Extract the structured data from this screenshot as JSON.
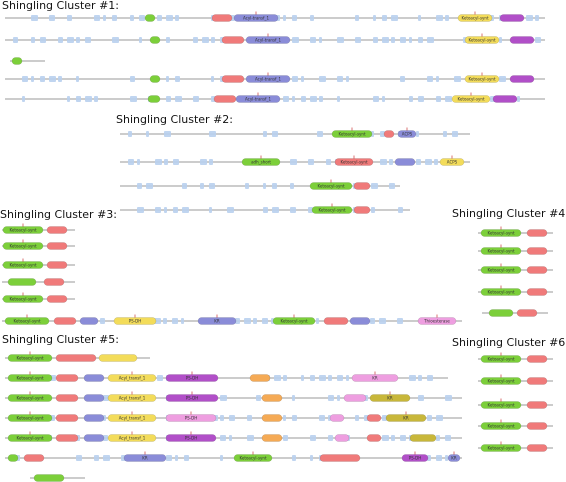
{
  "colors": {
    "green": "#7ccf3a",
    "red": "#f07a7a",
    "blue": "#8a8cd8",
    "purple": "#b14fc8",
    "yellow": "#f3dc5a",
    "orange": "#f5aa55",
    "pink": "#ee9ee0",
    "olive": "#c8b73a",
    "lightblue": "#b9d0ee",
    "line": "#9a9a9a"
  },
  "clusters": [
    {
      "title": "Shingling Cluster #1:",
      "rows": [
        {
          "blocks": [
            {
              "type": "green",
              "label": ""
            },
            {
              "type": "red",
              "label": ""
            },
            {
              "type": "blue",
              "label": "Acyl-transf_1"
            },
            {
              "type": "yellow",
              "label": "Ketoacyl-synt"
            },
            {
              "type": "purple",
              "label": ""
            }
          ]
        },
        {
          "blocks": [
            {
              "type": "green",
              "label": ""
            },
            {
              "type": "red",
              "label": ""
            },
            {
              "type": "blue",
              "label": "Acyl-transf_1"
            },
            {
              "type": "yellow",
              "label": "Ketoacyl-synt"
            },
            {
              "type": "purple",
              "label": ""
            }
          ]
        },
        {
          "blocks": [
            {
              "type": "green",
              "label": ""
            }
          ]
        },
        {
          "blocks": [
            {
              "type": "green",
              "label": ""
            },
            {
              "type": "red",
              "label": ""
            },
            {
              "type": "blue",
              "label": "Acyl-transf_1"
            },
            {
              "type": "yellow",
              "label": "Ketoacyl-synt"
            },
            {
              "type": "purple",
              "label": ""
            }
          ]
        },
        {
          "blocks": [
            {
              "type": "green",
              "label": ""
            },
            {
              "type": "red",
              "label": ""
            },
            {
              "type": "blue",
              "label": "Acyl-transf_1"
            },
            {
              "type": "yellow",
              "label": "Ketoacyl-synt"
            },
            {
              "type": "purple",
              "label": ""
            }
          ]
        }
      ]
    },
    {
      "title": "Shingling Cluster #2:",
      "rows": [
        {
          "blocks": [
            {
              "type": "green",
              "label": "Ketoacyl-synt"
            },
            {
              "type": "red",
              "label": ""
            },
            {
              "type": "blue",
              "label": "ACPS"
            }
          ]
        },
        {
          "blocks": [
            {
              "type": "green",
              "label": "adh_short"
            },
            {
              "type": "red",
              "label": "Ketoacyl-synt"
            },
            {
              "type": "blue",
              "label": ""
            },
            {
              "type": "yellow",
              "label": "ACPS"
            }
          ]
        },
        {
          "blocks": [
            {
              "type": "green",
              "label": "Ketoacyl-synt"
            },
            {
              "type": "red",
              "label": ""
            }
          ]
        },
        {
          "blocks": [
            {
              "type": "green",
              "label": "Ketoacyl-synt"
            },
            {
              "type": "red",
              "label": ""
            }
          ]
        }
      ]
    },
    {
      "title": "Shingling Cluster #3:",
      "rows": [
        {
          "blocks": [
            {
              "type": "green",
              "label": "Ketoacyl-synt"
            },
            {
              "type": "red",
              "label": ""
            }
          ]
        },
        {
          "blocks": [
            {
              "type": "green",
              "label": "Ketoacyl-synt"
            },
            {
              "type": "red",
              "label": ""
            }
          ]
        },
        {
          "blocks": [
            {
              "type": "green",
              "label": "Ketoacyl-synt"
            },
            {
              "type": "red",
              "label": ""
            }
          ]
        },
        {
          "blocks": [
            {
              "type": "green",
              "label": ""
            },
            {
              "type": "red",
              "label": ""
            }
          ]
        },
        {
          "blocks": [
            {
              "type": "green",
              "label": "Ketoacyl-synt"
            },
            {
              "type": "red",
              "label": ""
            }
          ]
        },
        {
          "blocks": [
            {
              "type": "green",
              "label": "Ketoacyl-synt"
            },
            {
              "type": "red",
              "label": ""
            },
            {
              "type": "blue",
              "label": ""
            },
            {
              "type": "yellow",
              "label": "PS-DH"
            },
            {
              "type": "blue",
              "label": "KR"
            },
            {
              "type": "green",
              "label": "Ketoacyl-synt"
            },
            {
              "type": "red",
              "label": ""
            },
            {
              "type": "blue",
              "label": ""
            },
            {
              "type": "pink",
              "label": "Thioesterase"
            }
          ]
        }
      ]
    },
    {
      "title": "Shingling Cluster #4:",
      "rows": [
        {
          "blocks": [
            {
              "type": "green",
              "label": "Ketoacyl-synt"
            },
            {
              "type": "red",
              "label": ""
            }
          ]
        },
        {
          "blocks": [
            {
              "type": "green",
              "label": "Ketoacyl-synt"
            },
            {
              "type": "red",
              "label": ""
            }
          ]
        },
        {
          "blocks": [
            {
              "type": "green",
              "label": "Ketoacyl-synt"
            },
            {
              "type": "red",
              "label": ""
            }
          ]
        },
        {
          "blocks": [
            {
              "type": "green",
              "label": "Ketoacyl-synt"
            },
            {
              "type": "red",
              "label": ""
            }
          ]
        },
        {
          "blocks": [
            {
              "type": "green",
              "label": ""
            },
            {
              "type": "red",
              "label": ""
            }
          ]
        }
      ]
    },
    {
      "title": "Shingling Cluster #5:",
      "rows": [
        {
          "blocks": [
            {
              "type": "green",
              "label": "Ketoacyl-synt"
            },
            {
              "type": "red",
              "label": ""
            },
            {
              "type": "yellow",
              "label": ""
            }
          ]
        },
        {
          "blocks": [
            {
              "type": "green",
              "label": "Ketoacyl-synt"
            },
            {
              "type": "red",
              "label": ""
            },
            {
              "type": "blue",
              "label": ""
            },
            {
              "type": "yellow",
              "label": "Acyl_transf_1"
            },
            {
              "type": "purple",
              "label": "PS-DH"
            },
            {
              "type": "orange",
              "label": ""
            },
            {
              "type": "pink",
              "label": "KR"
            }
          ]
        },
        {
          "blocks": [
            {
              "type": "green",
              "label": "Ketoacyl-synt"
            },
            {
              "type": "red",
              "label": ""
            },
            {
              "type": "blue",
              "label": ""
            },
            {
              "type": "yellow",
              "label": "Acyl_transf_1"
            },
            {
              "type": "purple",
              "label": "PS-DH"
            },
            {
              "type": "orange",
              "label": ""
            },
            {
              "type": "pink",
              "label": ""
            },
            {
              "type": "olive",
              "label": "KR"
            }
          ]
        },
        {
          "blocks": [
            {
              "type": "green",
              "label": "Ketoacyl-synt"
            },
            {
              "type": "red",
              "label": ""
            },
            {
              "type": "blue",
              "label": ""
            },
            {
              "type": "yellow",
              "label": "Acyl_transf_1"
            },
            {
              "type": "pink",
              "label": "PS-DH"
            },
            {
              "type": "orange",
              "label": ""
            },
            {
              "type": "pink",
              "label": ""
            },
            {
              "type": "red",
              "label": ""
            },
            {
              "type": "olive",
              "label": "KR"
            }
          ]
        },
        {
          "blocks": [
            {
              "type": "green",
              "label": "Ketoacyl-synt"
            },
            {
              "type": "red",
              "label": ""
            },
            {
              "type": "blue",
              "label": ""
            },
            {
              "type": "yellow",
              "label": "Acyl_transf_1"
            },
            {
              "type": "purple",
              "label": "PS-DH"
            },
            {
              "type": "orange",
              "label": ""
            },
            {
              "type": "pink",
              "label": ""
            },
            {
              "type": "red",
              "label": ""
            },
            {
              "type": "olive",
              "label": ""
            }
          ]
        },
        {
          "blocks": [
            {
              "type": "green",
              "label": ""
            },
            {
              "type": "red",
              "label": ""
            },
            {
              "type": "blue",
              "label": "KR"
            },
            {
              "type": "green",
              "label": "Ketoacyl-synt"
            },
            {
              "type": "red",
              "label": ""
            },
            {
              "type": "purple",
              "label": "PS-DH"
            },
            {
              "type": "blue",
              "label": "KR"
            },
            {
              "type": "yellow",
              "label": ""
            }
          ]
        },
        {
          "blocks": [
            {
              "type": "green",
              "label": ""
            }
          ]
        }
      ]
    },
    {
      "title": "Shingling Cluster #6:",
      "rows": [
        {
          "blocks": [
            {
              "type": "green",
              "label": "Ketoacyl-synt"
            },
            {
              "type": "red",
              "label": ""
            }
          ]
        },
        {
          "blocks": [
            {
              "type": "green",
              "label": "Ketoacyl-synt"
            },
            {
              "type": "red",
              "label": ""
            }
          ]
        },
        {
          "blocks": [
            {
              "type": "green",
              "label": "Ketoacyl-synt"
            },
            {
              "type": "red",
              "label": ""
            }
          ]
        },
        {
          "blocks": [
            {
              "type": "green",
              "label": "Ketoacyl-synt"
            },
            {
              "type": "red",
              "label": ""
            }
          ]
        },
        {
          "blocks": [
            {
              "type": "green",
              "label": "Ketoacyl-synt"
            },
            {
              "type": "red",
              "label": ""
            }
          ]
        }
      ]
    }
  ]
}
